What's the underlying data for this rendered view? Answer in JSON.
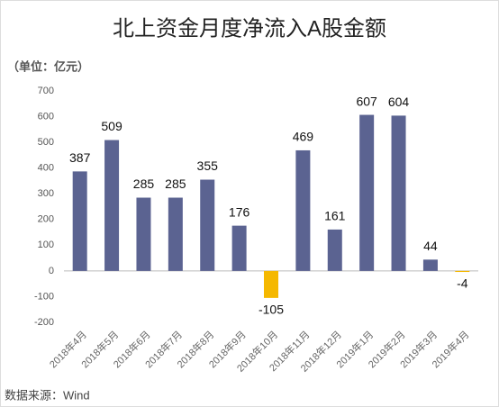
{
  "chart_data": {
    "type": "bar",
    "title": "北上资金月度净流入A股金额",
    "unit_label": "（单位：亿元）",
    "source": "数据来源：Wind",
    "categories": [
      "2018年4月",
      "2018年5月",
      "2018年6月",
      "2018年7月",
      "2018年8月",
      "2018年9月",
      "2018年10月",
      "2018年11月",
      "2018年12月",
      "2019年1月",
      "2019年2月",
      "2019年3月",
      "2019年4月"
    ],
    "values": [
      387,
      509,
      285,
      285,
      355,
      176,
      -105,
      469,
      161,
      607,
      604,
      44,
      -4
    ],
    "color": "#5b6391",
    "negative_color": "#f5b800",
    "ylim": [
      -200,
      700
    ],
    "yticks": [
      -200,
      -100,
      0,
      100,
      200,
      300,
      400,
      500,
      600,
      700
    ],
    "grid": false
  }
}
